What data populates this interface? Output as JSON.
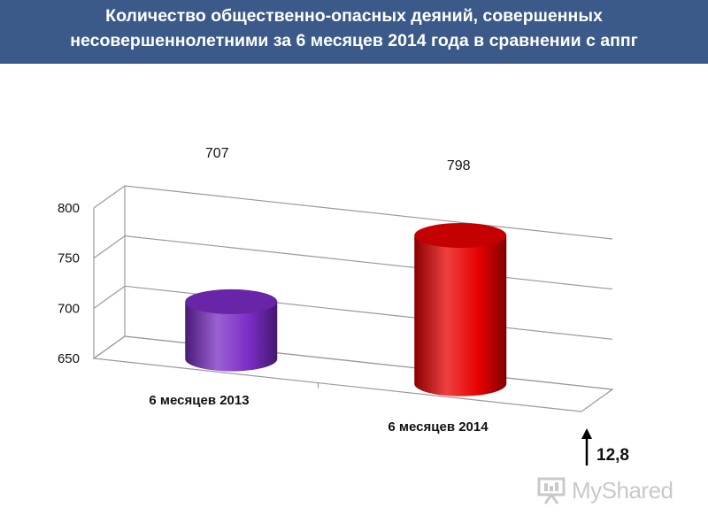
{
  "header": {
    "title_line1": "Количество общественно-опасных деяний, совершенных",
    "title_line2": "несовершеннолетними за 6 месяцев 2014 года в сравнении с аппг"
  },
  "chart_data": {
    "type": "bar",
    "style": "3d-cylinder",
    "categories": [
      "6 месяцев 2013",
      "6 месяцев 2014"
    ],
    "values": [
      707,
      798
    ],
    "data_labels": [
      "707",
      "798"
    ],
    "colors": [
      "#7a2cc4",
      "#e80000"
    ],
    "ylim": [
      650,
      800
    ],
    "yticks": [
      650,
      700,
      750,
      800
    ],
    "ytick_labels": [
      "650",
      "700",
      "750",
      "800"
    ],
    "grid": true,
    "legend": "none"
  },
  "change": {
    "value": "12,8",
    "direction": "up"
  },
  "watermark": {
    "text": "MyShared"
  }
}
